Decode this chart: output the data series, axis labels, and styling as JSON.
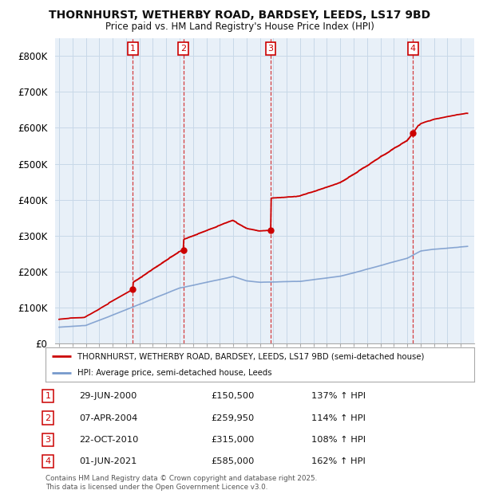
{
  "title_line1": "THORNHURST, WETHERBY ROAD, BARDSEY, LEEDS, LS17 9BD",
  "title_line2": "Price paid vs. HM Land Registry's House Price Index (HPI)",
  "background_color": "#ffffff",
  "chart_bg_color": "#e8f0f8",
  "grid_color": "#c8d8e8",
  "ylim": [
    0,
    850000
  ],
  "yticks": [
    0,
    100000,
    200000,
    300000,
    400000,
    500000,
    600000,
    700000,
    800000
  ],
  "ytick_labels": [
    "£0",
    "£100K",
    "£200K",
    "£300K",
    "£400K",
    "£500K",
    "£600K",
    "£700K",
    "£800K"
  ],
  "sale_label": "THORNHURST, WETHERBY ROAD, BARDSEY, LEEDS, LS17 9BD (semi-detached house)",
  "hpi_label": "HPI: Average price, semi-detached house, Leeds",
  "transactions": [
    {
      "num": 1,
      "date": "29-JUN-2000",
      "price": 150500,
      "pct": "137%",
      "year": 2000.5
    },
    {
      "num": 2,
      "date": "07-APR-2004",
      "price": 259950,
      "pct": "114%",
      "year": 2004.27
    },
    {
      "num": 3,
      "date": "22-OCT-2010",
      "price": 315000,
      "pct": "108%",
      "year": 2010.8
    },
    {
      "num": 4,
      "date": "01-JUN-2021",
      "price": 585000,
      "pct": "162%",
      "year": 2021.42
    }
  ],
  "footer_line1": "Contains HM Land Registry data © Crown copyright and database right 2025.",
  "footer_line2": "This data is licensed under the Open Government Licence v3.0.",
  "sale_line_color": "#cc0000",
  "hpi_line_color": "#7799cc"
}
